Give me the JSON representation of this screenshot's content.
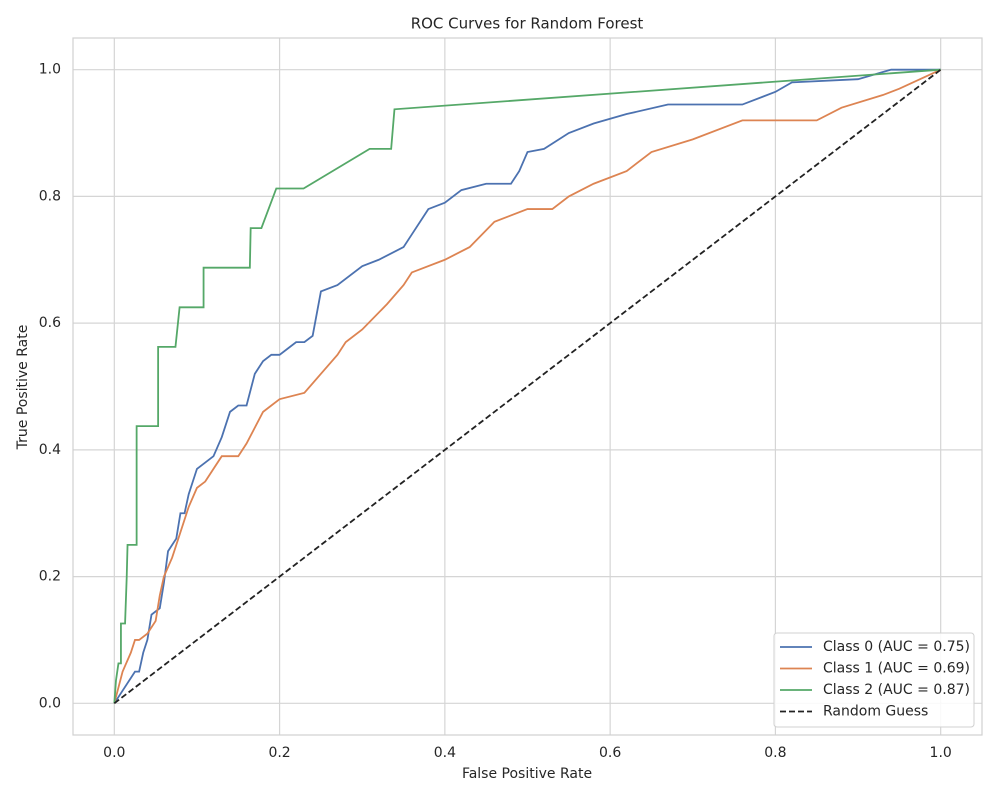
{
  "chart_data": {
    "type": "line",
    "title": "ROC Curves for Random Forest",
    "x_label": "False Positive Rate",
    "y_label": "True Positive Rate",
    "xlim": [
      -0.05,
      1.05
    ],
    "ylim": [
      -0.05,
      1.05
    ],
    "xticks": [
      {
        "value": 0,
        "label": "0.0"
      },
      0.2,
      0.4,
      0.6,
      0.8,
      {
        "value": 1,
        "label": "1.0"
      }
    ],
    "yticks": [
      {
        "value": 0,
        "label": "0.0"
      },
      0.2,
      0.4,
      0.6,
      0.8,
      {
        "value": 1,
        "label": "1.0"
      }
    ],
    "grid": true,
    "legend": "lower right",
    "series": [
      {
        "name": "Class 0 (AUC = 0.75)",
        "color": "#4c72b0",
        "linestyle": "solid",
        "x": [
          0,
          0.02,
          0.025,
          0.03,
          0.035,
          0.04,
          0.045,
          0.055,
          0.06,
          0.065,
          0.07,
          0.075,
          0.08,
          0.085,
          0.09,
          0.1,
          0.11,
          0.12,
          0.13,
          0.14,
          0.15,
          0.16,
          0.17,
          0.18,
          0.19,
          0.2,
          0.21,
          0.22,
          0.23,
          0.24,
          0.25,
          0.27,
          0.3,
          0.32,
          0.35,
          0.36,
          0.38,
          0.4,
          0.42,
          0.45,
          0.48,
          0.49,
          0.5,
          0.52,
          0.55,
          0.58,
          0.62,
          0.67,
          0.76,
          0.8,
          0.82,
          0.9,
          0.94,
          1.0
        ],
        "values": [
          0,
          0.04,
          0.05,
          0.05,
          0.08,
          0.1,
          0.14,
          0.15,
          0.19,
          0.24,
          0.25,
          0.26,
          0.3,
          0.3,
          0.33,
          0.37,
          0.38,
          0.39,
          0.42,
          0.46,
          0.47,
          0.47,
          0.52,
          0.54,
          0.55,
          0.55,
          0.56,
          0.57,
          0.57,
          0.58,
          0.65,
          0.66,
          0.69,
          0.7,
          0.72,
          0.74,
          0.78,
          0.79,
          0.81,
          0.82,
          0.82,
          0.84,
          0.87,
          0.875,
          0.9,
          0.915,
          0.93,
          0.945,
          0.945,
          0.965,
          0.98,
          0.985,
          1.0,
          1.0
        ]
      },
      {
        "name": "Class 1 (AUC = 0.69)",
        "color": "#dd8452",
        "linestyle": "solid",
        "x": [
          0,
          0.01,
          0.02,
          0.025,
          0.03,
          0.04,
          0.05,
          0.055,
          0.06,
          0.07,
          0.08,
          0.09,
          0.1,
          0.11,
          0.13,
          0.15,
          0.16,
          0.18,
          0.19,
          0.2,
          0.23,
          0.25,
          0.27,
          0.28,
          0.3,
          0.33,
          0.35,
          0.36,
          0.4,
          0.43,
          0.46,
          0.5,
          0.53,
          0.55,
          0.58,
          0.62,
          0.65,
          0.7,
          0.76,
          0.85,
          0.88,
          0.93,
          0.95,
          1.0
        ],
        "values": [
          0,
          0.05,
          0.08,
          0.1,
          0.1,
          0.11,
          0.13,
          0.17,
          0.2,
          0.23,
          0.27,
          0.31,
          0.34,
          0.35,
          0.39,
          0.39,
          0.41,
          0.46,
          0.47,
          0.48,
          0.49,
          0.52,
          0.55,
          0.57,
          0.59,
          0.63,
          0.66,
          0.68,
          0.7,
          0.72,
          0.76,
          0.78,
          0.78,
          0.8,
          0.82,
          0.84,
          0.87,
          0.89,
          0.92,
          0.92,
          0.94,
          0.96,
          0.97,
          1.0
        ]
      },
      {
        "name": "Class 2 (AUC = 0.87)",
        "color": "#55a868",
        "linestyle": "solid",
        "x": [
          0,
          0.002,
          0.005,
          0.008,
          0.008,
          0.013,
          0.015,
          0.016,
          0.027,
          0.027,
          0.053,
          0.053,
          0.074,
          0.079,
          0.108,
          0.108,
          0.164,
          0.165,
          0.178,
          0.196,
          0.229,
          0.309,
          0.335,
          0.339,
          1.0
        ],
        "values": [
          0,
          0.036,
          0.063,
          0.063,
          0.126,
          0.126,
          0.199,
          0.25,
          0.25,
          0.4375,
          0.4375,
          0.5625,
          0.5625,
          0.625,
          0.625,
          0.6875,
          0.6875,
          0.75,
          0.75,
          0.8125,
          0.8125,
          0.875,
          0.875,
          0.9375,
          1.0
        ]
      },
      {
        "name": "Random Guess",
        "color": "#222222",
        "linestyle": "dashed",
        "x": [
          0,
          1
        ],
        "values": [
          0,
          1
        ]
      }
    ]
  }
}
